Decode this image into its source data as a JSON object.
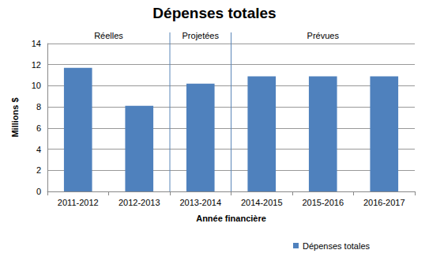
{
  "chart_data": {
    "type": "bar",
    "title": "Dépenses totales",
    "x_label": "Année financière",
    "y_label": "Millions $",
    "categories": [
      "2011-2012",
      "2012-2013",
      "2013-2014",
      "2014-2015",
      "2015-2016",
      "2016-2017"
    ],
    "series": [
      {
        "name": "Dépenses totales",
        "color": "#4f81bd",
        "values": [
          11.7,
          8.1,
          10.2,
          10.9,
          10.9,
          10.9
        ]
      }
    ],
    "annotations": [
      {
        "text": "Réelles",
        "categories": [
          "2011-2012",
          "2012-2013"
        ]
      },
      {
        "text": "Projetées",
        "categories": [
          "2013-2014"
        ]
      },
      {
        "text": "Prévues",
        "categories": [
          "2014-2015",
          "2015-2016",
          "2016-2017"
        ]
      }
    ],
    "ylim": [
      0,
      14
    ],
    "yticks": [
      0,
      2,
      4,
      6,
      8,
      10,
      12,
      14
    ],
    "grid": true,
    "legend": "bottom-right"
  }
}
